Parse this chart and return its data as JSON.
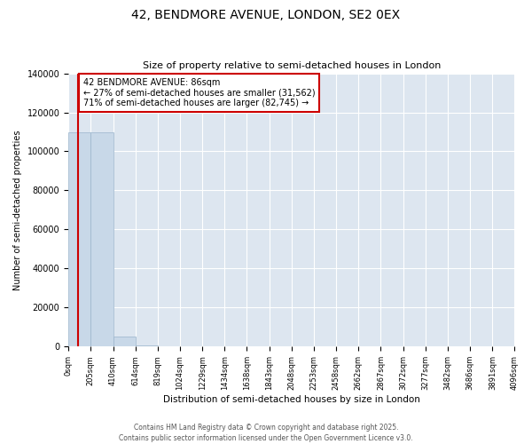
{
  "title": "42, BENDMORE AVENUE, LONDON, SE2 0EX",
  "subtitle": "Size of property relative to semi-detached houses in London",
  "xlabel": "Distribution of semi-detached houses by size in London",
  "ylabel": "Number of semi-detached properties",
  "property_size": 86,
  "annotation_line1": "42 BENDMORE AVENUE: 86sqm",
  "annotation_line2": "← 27% of semi-detached houses are smaller (31,562)",
  "annotation_line3": "71% of semi-detached houses are larger (82,745) →",
  "footer_line1": "Contains HM Land Registry data © Crown copyright and database right 2025.",
  "footer_line2": "Contains public sector information licensed under the Open Government Licence v3.0.",
  "bar_color": "#c8d8e8",
  "bar_edge_color": "#9ab4cc",
  "vline_color": "#cc0000",
  "annotation_box_edgecolor": "#cc0000",
  "background_color": "#dde6f0",
  "grid_color": "#ffffff",
  "ylim": [
    0,
    140000
  ],
  "bin_edges": [
    0,
    205,
    410,
    614,
    819,
    1024,
    1229,
    1434,
    1638,
    1843,
    2048,
    2253,
    2458,
    2662,
    2867,
    3072,
    3277,
    3482,
    3686,
    3891,
    4096
  ],
  "bin_labels": [
    "0sqm",
    "205sqm",
    "410sqm",
    "614sqm",
    "819sqm",
    "1024sqm",
    "1229sqm",
    "1434sqm",
    "1638sqm",
    "1843sqm",
    "2048sqm",
    "2253sqm",
    "2458sqm",
    "2662sqm",
    "2867sqm",
    "3072sqm",
    "3277sqm",
    "3482sqm",
    "3686sqm",
    "3891sqm",
    "4096sqm"
  ],
  "bar_heights": [
    110000,
    110000,
    5000,
    800,
    200,
    80,
    30,
    15,
    8,
    4,
    3,
    2,
    2,
    1,
    1,
    1,
    1,
    1,
    1,
    1
  ],
  "yticks": [
    0,
    20000,
    40000,
    60000,
    80000,
    100000,
    120000,
    140000
  ]
}
